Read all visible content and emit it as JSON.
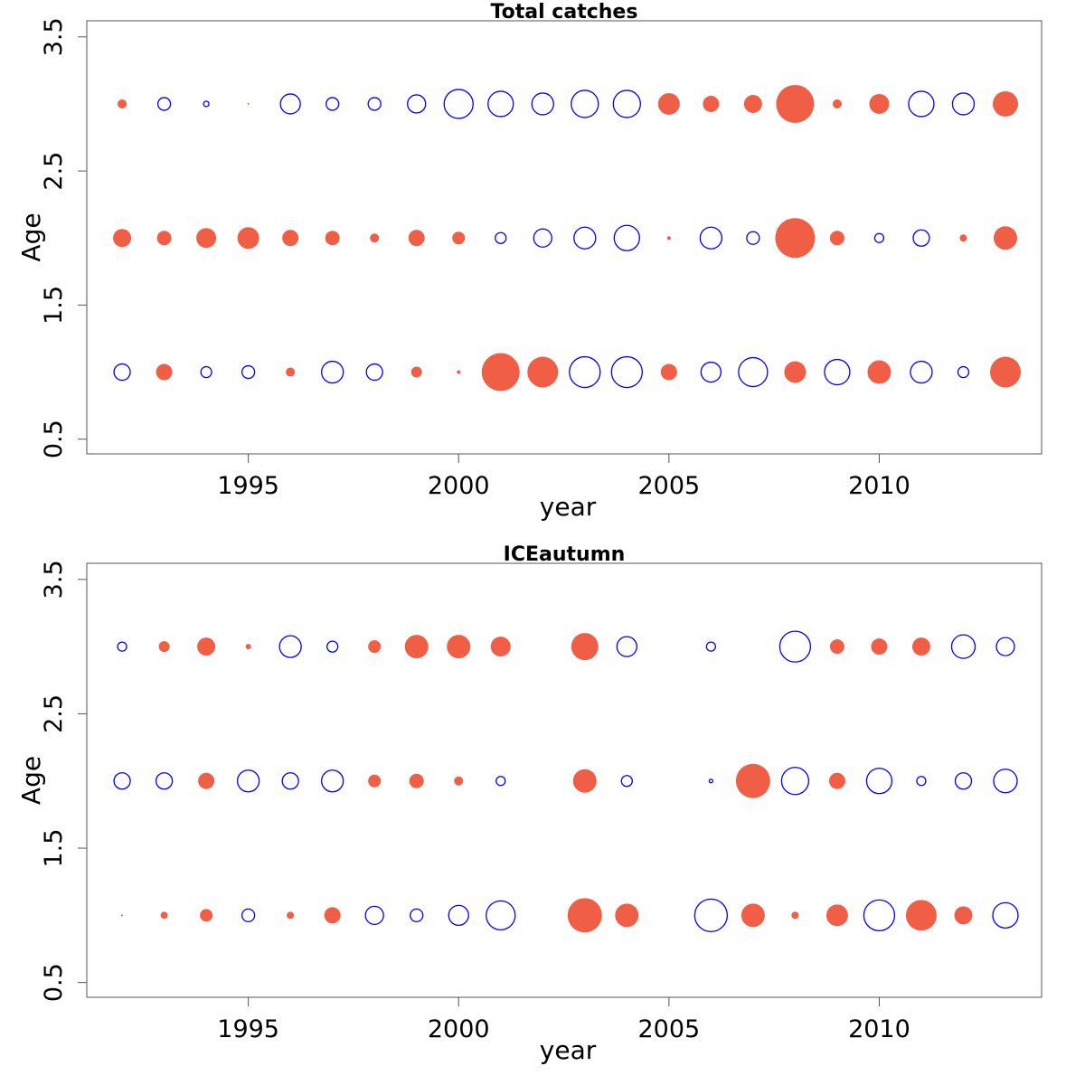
{
  "chart_data": [
    {
      "type": "bubble",
      "title": "Total catches",
      "xlabel": "year",
      "ylabel": "Age",
      "x": [
        1992,
        1993,
        1994,
        1995,
        1996,
        1997,
        1998,
        1999,
        2000,
        2001,
        2002,
        2003,
        2004,
        2005,
        2006,
        2007,
        2008,
        2009,
        2010,
        2011,
        2012,
        2013
      ],
      "ages": [
        1,
        2,
        3
      ],
      "residuals": [
        [
          -0.9,
          0.9,
          -0.6,
          -0.7,
          0.5,
          -1.2,
          -0.9,
          0.6,
          0.2,
          2.1,
          1.7,
          -1.7,
          -1.7,
          0.9,
          -1.1,
          -1.6,
          1.2,
          -1.4,
          1.3,
          -1.2,
          -0.6,
          1.7
        ],
        [
          1.0,
          0.8,
          1.1,
          1.2,
          0.9,
          0.8,
          0.5,
          0.9,
          0.7,
          -0.6,
          -1.0,
          -1.2,
          -1.4,
          0.2,
          -1.2,
          -0.7,
          2.2,
          0.8,
          -0.5,
          -0.9,
          0.4,
          1.3
        ],
        [
          0.5,
          -0.7,
          -0.3,
          0.1,
          -1.1,
          -0.7,
          -0.7,
          -1.0,
          -1.6,
          -1.4,
          -1.2,
          -1.5,
          -1.5,
          1.2,
          0.9,
          1.0,
          2.1,
          0.5,
          1.1,
          -1.4,
          -1.2,
          1.4
        ]
      ],
      "positive_color": "#f05e46",
      "negative_color": "#0000ff",
      "xlim": [
        1991.16,
        2013.86
      ],
      "ylim": [
        0.39,
        3.62
      ],
      "xticks": [
        1995,
        2000,
        2005,
        2010
      ],
      "yticks": [
        0.5,
        1.5,
        2.5,
        3.5
      ]
    },
    {
      "type": "bubble",
      "title": "ICEautumn",
      "xlabel": "year",
      "ylabel": "Age",
      "x": [
        1992,
        1993,
        1994,
        1995,
        1996,
        1997,
        1998,
        1999,
        2000,
        2001,
        2002,
        2003,
        2004,
        2005,
        2006,
        2007,
        2008,
        2009,
        2010,
        2011,
        2012,
        2013
      ],
      "ages": [
        1,
        2,
        3
      ],
      "residuals": [
        [
          0.1,
          0.4,
          0.7,
          -0.7,
          0.4,
          0.9,
          -1.0,
          -0.7,
          -1.1,
          -1.6,
          null,
          1.9,
          1.3,
          null,
          -1.8,
          1.3,
          0.4,
          1.2,
          -1.7,
          1.7,
          1.0,
          -1.4
        ],
        [
          -0.9,
          -0.9,
          0.9,
          -1.2,
          -0.9,
          -1.2,
          0.7,
          0.8,
          0.5,
          -0.5,
          null,
          1.3,
          -0.6,
          null,
          -0.2,
          1.9,
          -1.5,
          0.9,
          -1.4,
          -0.5,
          -0.9,
          -1.3
        ],
        [
          -0.5,
          0.6,
          1.0,
          0.3,
          -1.2,
          -0.6,
          0.7,
          1.3,
          1.3,
          1.1,
          null,
          1.5,
          -1.1,
          null,
          -0.5,
          null,
          -1.7,
          0.8,
          0.9,
          1.0,
          -1.3,
          -1.0
        ]
      ],
      "positive_color": "#f05e46",
      "negative_color": "#0000ff",
      "xlim": [
        1991.16,
        2013.86
      ],
      "ylim": [
        0.39,
        3.62
      ],
      "xticks": [
        1995,
        2000,
        2005,
        2010
      ],
      "yticks": [
        0.5,
        1.5,
        2.5,
        3.5
      ]
    }
  ]
}
